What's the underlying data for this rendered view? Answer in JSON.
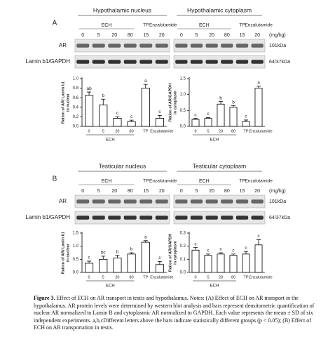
{
  "panels": [
    {
      "letter": "A",
      "unit": "(mg/kg)",
      "rows": [
        "AR",
        "Lamin b1/GAPDH"
      ],
      "sizes": [
        "101kDa",
        "64/37kDa"
      ],
      "blots": [
        {
          "title": "Hypothalamic nucleus",
          "group": "ECH",
          "extras": [
            "TP",
            "Enzalutamide"
          ],
          "doses": [
            "0",
            "5",
            "20",
            "80",
            "15",
            "20"
          ]
        },
        {
          "title": "Hypothalamic cytoplasm",
          "group": "ECH",
          "extras": [
            "TP",
            "Enzalutamide"
          ],
          "doses": [
            "0",
            "5",
            "20",
            "80",
            "15",
            "20"
          ]
        }
      ]
    },
    {
      "letter": "B",
      "unit": "(mg/kg)",
      "rows": [
        "AR",
        "Lamin b1/GAPDH"
      ],
      "sizes": [
        "101kDa",
        "64/37kDa"
      ],
      "blots": [
        {
          "title": "Testicular nucleus",
          "group": "ECH",
          "extras": [
            "TP",
            "Enzalutamide"
          ],
          "doses": [
            "0",
            "5",
            "20",
            "80",
            "15",
            "20"
          ]
        },
        {
          "title": "Testicular cytoplasm",
          "group": "ECH",
          "extras": [
            "TP",
            "Enzalutamide"
          ],
          "doses": [
            "0",
            "5",
            "20",
            "80",
            "15",
            "20"
          ]
        }
      ]
    }
  ],
  "chart_data": [
    {
      "type": "bar",
      "ylabel": [
        "Ration of AR/ Lamin b1",
        "in nuclear"
      ],
      "group": "ECH",
      "categories": [
        "0",
        "5",
        "20",
        "80",
        "TP",
        "Enzalutamide"
      ],
      "values": [
        0.65,
        0.45,
        0.17,
        0.1,
        0.8,
        0.17
      ],
      "errors": [
        0.07,
        0.12,
        0.03,
        0.03,
        0.08,
        0.06
      ],
      "letters": [
        "ab",
        "b",
        "c",
        "c",
        "a",
        "c"
      ],
      "color": "#ffffff",
      "ylim": [
        0,
        1.0
      ],
      "yticks": [
        {
          "value": 0,
          "label": "0.0"
        },
        0.2,
        0.4,
        0.6,
        0.8,
        {
          "value": 1.0,
          "label": "1.0"
        }
      ]
    },
    {
      "type": "bar",
      "ylabel": [
        "Ration of AR/GAPDH",
        "in cytoplasm"
      ],
      "group": "ECH",
      "categories": [
        "0",
        "5",
        "20",
        "80",
        "TP",
        "Enzalutamide"
      ],
      "values": [
        0.22,
        0.25,
        0.7,
        0.6,
        0.15,
        1.2
      ],
      "errors": [
        0.03,
        0.03,
        0.08,
        0.05,
        0.05,
        0.06
      ],
      "letters": [
        "c",
        "c",
        "b",
        "b",
        "c",
        "a"
      ],
      "color": "#ffffff",
      "ylim": [
        0,
        1.5
      ],
      "yticks": [
        {
          "value": 0,
          "label": "0.0"
        },
        0.5,
        {
          "value": 1.0,
          "label": "1.0"
        },
        1.5
      ]
    },
    {
      "type": "bar",
      "ylabel": [
        "Ration of AR/ Lamin b1",
        "in nuclear"
      ],
      "group": "ECH",
      "categories": [
        "0",
        "5",
        "20",
        "80",
        "TP",
        "Enzalutamide"
      ],
      "values": [
        0.35,
        0.5,
        0.55,
        0.7,
        1.15,
        0.3
      ],
      "errors": [
        0.08,
        0.12,
        0.1,
        0.05,
        0.06,
        0.12
      ],
      "letters": [
        "c",
        "bc",
        "b",
        "b",
        "a",
        "c"
      ],
      "color": "#ffffff",
      "ylim": [
        0,
        1.5
      ],
      "yticks": [
        {
          "value": 0,
          "label": "0.0"
        },
        0.5,
        {
          "value": 1.0,
          "label": "1.0"
        },
        1.5
      ]
    },
    {
      "type": "bar",
      "ylabel": [
        "Ration of AR/GAPDH",
        "in cytoplasm"
      ],
      "group": "ECH",
      "categories": [
        "0",
        "5",
        "20",
        "80",
        "TP",
        "Enzalutamide"
      ],
      "values": [
        0.17,
        0.13,
        0.14,
        0.13,
        0.14,
        0.21
      ],
      "errors": [
        0.02,
        0.01,
        0.01,
        0.01,
        0.02,
        0.04
      ],
      "letters": [
        "c",
        "c",
        "c",
        "c",
        "c",
        "c"
      ],
      "color": "#ffffff",
      "ylim": [
        0,
        0.3
      ],
      "yticks": [
        {
          "value": 0,
          "label": "0.0"
        },
        0.1,
        0.2,
        0.3
      ]
    }
  ],
  "caption": {
    "label": "Figure 3.",
    "text": "Effect of ECH on AR transport in testis and hypothalamus. Notes: (A) Effect of ECH on AR transport in the hypothalamus. AR protein levels were determined by western blot analysis and bars represent densitometric quantification of nuclear AR normalized to Lamin B and cytoplasmic AR normalized to GAPDH. Each value represents the mean ± SD of six independent experiments. a,b,cDifferent letters above the bars indicate statistically different groups (p < 0.05); (B) Effect of ECH on AR transportation in testis."
  }
}
